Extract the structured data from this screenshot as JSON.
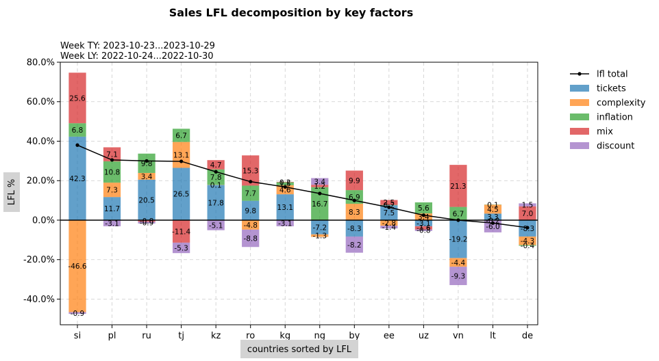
{
  "chart_data": {
    "type": "bar",
    "stacked": true,
    "title": "Sales LFL decomposition by key factors",
    "subtitle_lines": [
      "Week TY: 2023-10-23...2023-10-29",
      "Week LY: 2022-10-24...2022-10-30"
    ],
    "xlabel": "countries sorted by LFL",
    "ylabel": "LFL %",
    "ylim": [
      -53,
      80
    ],
    "yticks": [
      -40,
      -20,
      0,
      20,
      40,
      60,
      80
    ],
    "ytick_labels": [
      "-40.0%",
      "-20.0%",
      "0.0%",
      "20.0%",
      "40.0%",
      "60.0%",
      "80.0%"
    ],
    "grid": true,
    "legend_position": "outside-right",
    "categories": [
      "si",
      "pl",
      "ru",
      "tj",
      "kz",
      "ro",
      "kg",
      "ng",
      "by",
      "ee",
      "uz",
      "vn",
      "lt",
      "de"
    ],
    "series": [
      {
        "name": "tickets",
        "color": "#1f77b4",
        "values": [
          42.3,
          11.7,
          20.5,
          26.5,
          17.8,
          9.8,
          13.1,
          -7.2,
          -8.3,
          7.5,
          -3.1,
          -19.2,
          3.3,
          -8.3
        ]
      },
      {
        "name": "complexity",
        "color": "#ff7f0e",
        "values": [
          -46.6,
          7.3,
          3.4,
          13.1,
          0.1,
          -4.8,
          4.6,
          -1.3,
          8.3,
          -2.8,
          3.4,
          -4.4,
          4.5,
          -4.3
        ]
      },
      {
        "name": "inflation",
        "color": "#2ca02c",
        "values": [
          6.8,
          10.8,
          9.8,
          6.7,
          7.8,
          7.7,
          1.5,
          16.7,
          6.9,
          0.2,
          5.6,
          6.7,
          0.1,
          -0.4
        ]
      },
      {
        "name": "mix",
        "color": "#d62728",
        "values": [
          25.6,
          7.1,
          -0.8,
          -11.4,
          4.7,
          15.3,
          0.2,
          1.2,
          9.9,
          2.5,
          -1.6,
          21.3,
          -0.2,
          7.0
        ]
      },
      {
        "name": "discount",
        "color": "#9467bd",
        "values": [
          -0.9,
          -3.1,
          -0.9,
          -5.3,
          -5.1,
          -8.8,
          -3.1,
          3.4,
          -8.2,
          -1.4,
          -0.8,
          -9.3,
          -6.0,
          1.5
        ]
      }
    ],
    "lfl_total": {
      "name": "lfl total",
      "color": "#000000",
      "values": [
        38.0,
        30.5,
        30.0,
        29.8,
        24.5,
        19.5,
        16.8,
        13.5,
        10.0,
        6.5,
        2.5,
        0.0,
        -1.5,
        -3.8
      ]
    }
  }
}
